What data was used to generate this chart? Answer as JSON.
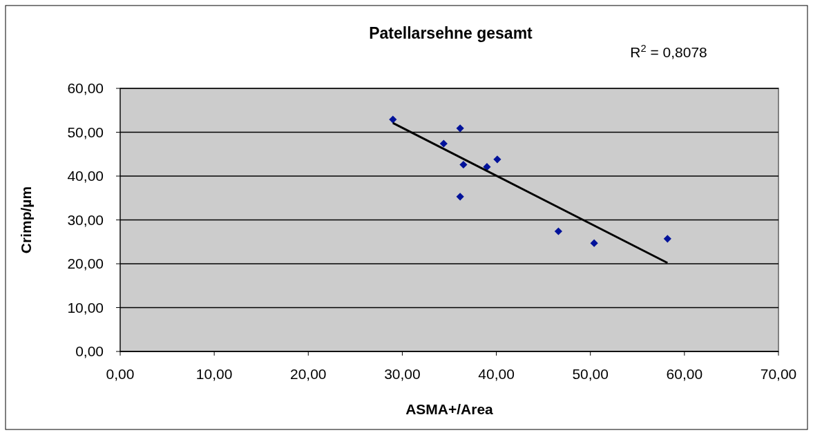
{
  "chart_data": {
    "type": "scatter",
    "title": "Patellarsehne gesamt",
    "xlabel": "ASMA+/Area",
    "ylabel": "Crimp/µm",
    "annotations": [
      "R$^{2}$ = 0,8078"
    ],
    "series": [
      {
        "color": "#00129a",
        "marker": "diamond",
        "x": [
          29.0,
          34.4,
          36.15,
          36.15,
          36.5,
          39.0,
          40.1,
          46.6,
          50.4,
          58.2
        ],
        "values": [
          52.9,
          47.4,
          50.9,
          35.3,
          42.6,
          42.1,
          43.8,
          27.4,
          24.7,
          25.7
        ]
      },
      {
        "type": "line",
        "color": "#000000",
        "marker": "none",
        "x": [
          29.0,
          58.2
        ],
        "values": [
          52.1,
          20.2
        ]
      }
    ],
    "xlim": [
      0,
      70
    ],
    "ylim": [
      0,
      60
    ],
    "xticks": [
      {
        "value": 0,
        "label": "0,00"
      },
      {
        "value": 10,
        "label": "10,00"
      },
      {
        "value": 20,
        "label": "20,00"
      },
      {
        "value": 30,
        "label": "30,00"
      },
      {
        "value": 40,
        "label": "40,00"
      },
      {
        "value": 50,
        "label": "50,00"
      },
      {
        "value": 60,
        "label": "60,00"
      },
      {
        "value": 70,
        "label": "70,00"
      }
    ],
    "yticks": [
      {
        "value": 0,
        "label": "0,00"
      },
      {
        "value": 10,
        "label": "10,00"
      },
      {
        "value": 20,
        "label": "20,00"
      },
      {
        "value": 30,
        "label": "30,00"
      },
      {
        "value": 40,
        "label": "40,00"
      },
      {
        "value": 50,
        "label": "50,00"
      },
      {
        "value": 60,
        "label": "60,00"
      }
    ],
    "grid": "y"
  }
}
